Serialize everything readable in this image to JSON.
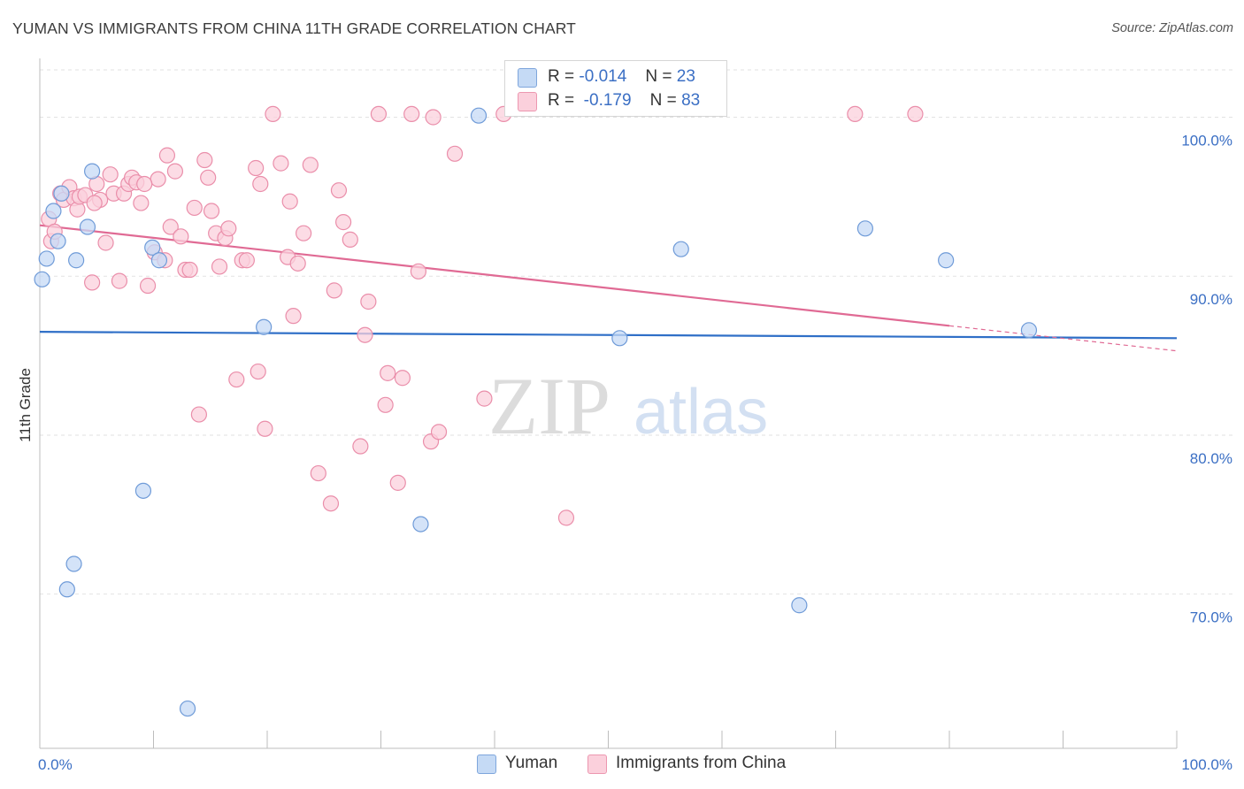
{
  "title": "YUMAN VS IMMIGRANTS FROM CHINA 11TH GRADE CORRELATION CHART",
  "source": "Source: ZipAtlas.com",
  "watermark": {
    "zip": "ZIP",
    "atlas": "atlas"
  },
  "legend": {
    "r_label": "R =",
    "n_label": "N =",
    "rows": [
      {
        "name": "Yuman",
        "r": "-0.014",
        "n": "23",
        "fill": "#b9d1f2",
        "stroke": "#7ea6dc"
      },
      {
        "name": "Immigrants from China",
        "r": "-0.179",
        "n": "83",
        "fill": "#f8c4d3",
        "stroke": "#ec97b0"
      }
    ]
  },
  "bottom_legend": [
    {
      "label": "Yuman"
    },
    {
      "label": "Immigrants from China"
    }
  ],
  "colors": {
    "yuman_fill": "#c5daf5",
    "yuman_stroke": "#6f9bd8",
    "yuman_line": "#2f6fc7",
    "china_fill": "#fbd0dc",
    "china_stroke": "#ea8eaa",
    "china_line": "#e06a94",
    "grid": "#e2e2e2",
    "axis_text": "#3b6fc4"
  },
  "chart_data": {
    "type": "scatter",
    "title": "YUMAN VS IMMIGRANTS FROM CHINA 11TH GRADE CORRELATION CHART",
    "xlabel": "",
    "ylabel": "11th Grade",
    "xlim": [
      0,
      100
    ],
    "ylim": [
      60.3,
      103.7
    ],
    "x_tick_labels": [
      "0.0%",
      "100.0%"
    ],
    "y_ticks": [
      70,
      80,
      90,
      100
    ],
    "y_tick_labels": [
      "70.0%",
      "80.0%",
      "90.0%",
      "100.0%"
    ],
    "series": [
      {
        "name": "Yuman",
        "r": -0.014,
        "n": 23,
        "trend": {
          "x": [
            0,
            100
          ],
          "y": [
            86.5,
            86.1
          ],
          "dashed_from": null
        },
        "points": [
          {
            "x": 0.2,
            "y": 89.8
          },
          {
            "x": 0.6,
            "y": 91.1
          },
          {
            "x": 1.2,
            "y": 94.1
          },
          {
            "x": 1.6,
            "y": 92.2
          },
          {
            "x": 1.9,
            "y": 95.2
          },
          {
            "x": 2.4,
            "y": 70.3
          },
          {
            "x": 3.0,
            "y": 71.9
          },
          {
            "x": 3.2,
            "y": 91.0
          },
          {
            "x": 4.2,
            "y": 93.1
          },
          {
            "x": 4.6,
            "y": 96.6
          },
          {
            "x": 9.1,
            "y": 76.5
          },
          {
            "x": 9.9,
            "y": 91.8
          },
          {
            "x": 10.5,
            "y": 91.0
          },
          {
            "x": 13.0,
            "y": 62.8
          },
          {
            "x": 19.7,
            "y": 86.8
          },
          {
            "x": 33.5,
            "y": 74.4
          },
          {
            "x": 38.6,
            "y": 100.1
          },
          {
            "x": 51.0,
            "y": 86.1
          },
          {
            "x": 56.4,
            "y": 91.7
          },
          {
            "x": 66.8,
            "y": 69.3
          },
          {
            "x": 72.6,
            "y": 93.0
          },
          {
            "x": 79.7,
            "y": 91.0
          },
          {
            "x": 87.0,
            "y": 86.6
          }
        ]
      },
      {
        "name": "Immigrants from China",
        "r": -0.179,
        "n": 83,
        "trend": {
          "x": [
            0,
            100
          ],
          "y": [
            93.2,
            85.3
          ],
          "dashed_from": 80
        },
        "points": [
          {
            "x": 0.8,
            "y": 93.6
          },
          {
            "x": 1.0,
            "y": 92.2
          },
          {
            "x": 1.3,
            "y": 92.8
          },
          {
            "x": 1.8,
            "y": 95.2
          },
          {
            "x": 2.1,
            "y": 94.8
          },
          {
            "x": 2.6,
            "y": 95.6
          },
          {
            "x": 3.0,
            "y": 94.9
          },
          {
            "x": 3.3,
            "y": 94.2
          },
          {
            "x": 3.5,
            "y": 95.0
          },
          {
            "x": 4.0,
            "y": 95.1
          },
          {
            "x": 4.6,
            "y": 89.6
          },
          {
            "x": 5.0,
            "y": 95.8
          },
          {
            "x": 5.3,
            "y": 94.8
          },
          {
            "x": 5.8,
            "y": 92.1
          },
          {
            "x": 6.2,
            "y": 96.4
          },
          {
            "x": 6.5,
            "y": 95.2
          },
          {
            "x": 7.0,
            "y": 89.7
          },
          {
            "x": 7.4,
            "y": 95.2
          },
          {
            "x": 7.8,
            "y": 95.8
          },
          {
            "x": 8.1,
            "y": 96.2
          },
          {
            "x": 8.5,
            "y": 95.9
          },
          {
            "x": 8.9,
            "y": 94.6
          },
          {
            "x": 9.5,
            "y": 89.4
          },
          {
            "x": 10.1,
            "y": 91.5
          },
          {
            "x": 10.4,
            "y": 96.1
          },
          {
            "x": 11.0,
            "y": 91.0
          },
          {
            "x": 11.2,
            "y": 97.6
          },
          {
            "x": 11.5,
            "y": 93.1
          },
          {
            "x": 11.9,
            "y": 96.6
          },
          {
            "x": 12.4,
            "y": 92.5
          },
          {
            "x": 12.8,
            "y": 90.4
          },
          {
            "x": 13.2,
            "y": 90.4
          },
          {
            "x": 13.6,
            "y": 94.3
          },
          {
            "x": 14.0,
            "y": 81.3
          },
          {
            "x": 14.5,
            "y": 97.3
          },
          {
            "x": 14.8,
            "y": 96.2
          },
          {
            "x": 15.1,
            "y": 94.1
          },
          {
            "x": 15.5,
            "y": 92.7
          },
          {
            "x": 15.8,
            "y": 90.6
          },
          {
            "x": 16.3,
            "y": 92.4
          },
          {
            "x": 16.6,
            "y": 93.0
          },
          {
            "x": 17.3,
            "y": 83.5
          },
          {
            "x": 17.8,
            "y": 91.0
          },
          {
            "x": 18.2,
            "y": 91.0
          },
          {
            "x": 19.0,
            "y": 96.8
          },
          {
            "x": 19.2,
            "y": 84.0
          },
          {
            "x": 19.4,
            "y": 95.8
          },
          {
            "x": 19.8,
            "y": 80.4
          },
          {
            "x": 20.5,
            "y": 100.2
          },
          {
            "x": 21.2,
            "y": 97.1
          },
          {
            "x": 21.8,
            "y": 91.2
          },
          {
            "x": 22.0,
            "y": 94.7
          },
          {
            "x": 22.3,
            "y": 87.5
          },
          {
            "x": 22.7,
            "y": 90.8
          },
          {
            "x": 23.2,
            "y": 92.7
          },
          {
            "x": 23.8,
            "y": 97.0
          },
          {
            "x": 24.5,
            "y": 77.6
          },
          {
            "x": 25.6,
            "y": 75.7
          },
          {
            "x": 25.9,
            "y": 89.1
          },
          {
            "x": 26.3,
            "y": 95.4
          },
          {
            "x": 26.7,
            "y": 93.4
          },
          {
            "x": 27.3,
            "y": 92.3
          },
          {
            "x": 28.2,
            "y": 79.3
          },
          {
            "x": 28.6,
            "y": 86.3
          },
          {
            "x": 28.9,
            "y": 88.4
          },
          {
            "x": 29.8,
            "y": 100.2
          },
          {
            "x": 30.4,
            "y": 81.9
          },
          {
            "x": 30.6,
            "y": 83.9
          },
          {
            "x": 31.5,
            "y": 77.0
          },
          {
            "x": 31.9,
            "y": 83.6
          },
          {
            "x": 32.7,
            "y": 100.2
          },
          {
            "x": 33.3,
            "y": 90.3
          },
          {
            "x": 34.4,
            "y": 79.6
          },
          {
            "x": 34.6,
            "y": 100.0
          },
          {
            "x": 35.1,
            "y": 80.2
          },
          {
            "x": 36.5,
            "y": 97.7
          },
          {
            "x": 39.1,
            "y": 82.3
          },
          {
            "x": 40.8,
            "y": 100.2
          },
          {
            "x": 46.3,
            "y": 74.8
          },
          {
            "x": 71.7,
            "y": 100.2
          },
          {
            "x": 77.0,
            "y": 100.2
          },
          {
            "x": 9.2,
            "y": 95.8
          },
          {
            "x": 4.8,
            "y": 94.6
          }
        ]
      }
    ]
  }
}
